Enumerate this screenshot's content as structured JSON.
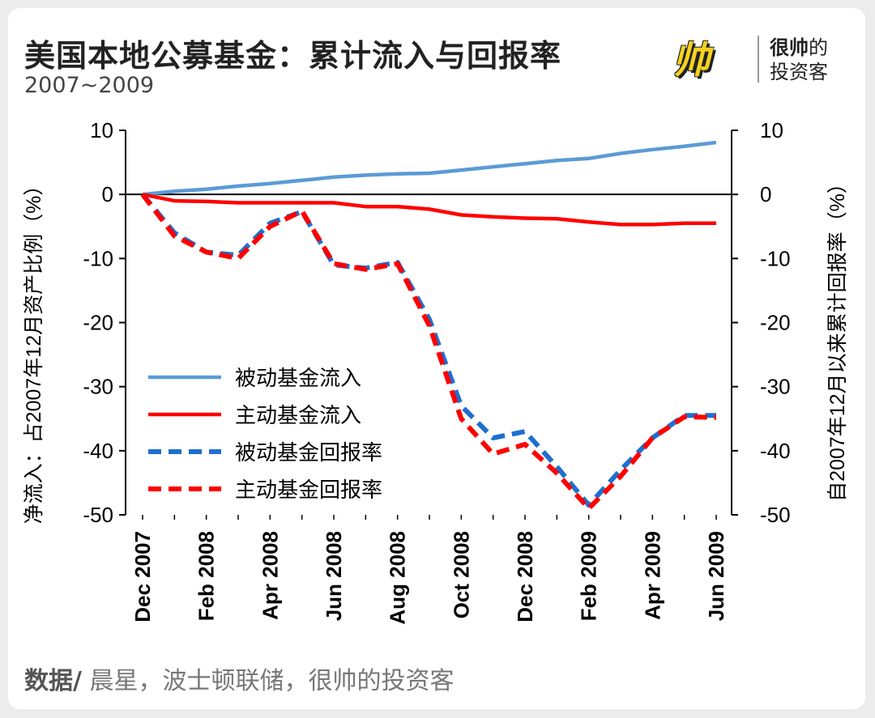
{
  "header": {
    "title": "美国本地公募基金：累计流入与回报率",
    "subtitle": "2007~2009"
  },
  "logo": {
    "mark": "帅",
    "line1a": "很帅",
    "line1b": "的",
    "line2": "投资客"
  },
  "source": {
    "label": "数据/",
    "text": " 晨星，波士顿联储，很帅的投资客"
  },
  "colors": {
    "passive": "#5b9bd5",
    "active": "#ff0000",
    "dash_blue": "#1f6fd0"
  },
  "chart_data": {
    "type": "line",
    "x": [
      "Dec 2007",
      "Jan 2008",
      "Feb 2008",
      "Mar 2008",
      "Apr 2008",
      "May 2008",
      "Jun 2008",
      "Jul 2008",
      "Aug 2008",
      "Sep 2008",
      "Oct 2008",
      "Nov 2008",
      "Dec 2008",
      "Jan 2009",
      "Feb 2009",
      "Mar 2009",
      "Apr 2009",
      "May 2009",
      "Jun 2009"
    ],
    "x_tick_labels": [
      "Dec 2007",
      "Feb 2008",
      "Apr 2008",
      "Jun 2008",
      "Aug 2008",
      "Oct 2008",
      "Dec 2008",
      "Feb 2009",
      "Apr 2009",
      "Jun 2009"
    ],
    "ylabel_left": "净流入：占2007年12月资产比例（%）",
    "ylabel_right": "自2007年12月以来累计回报率（%）",
    "ylim": [
      -50,
      10
    ],
    "yticks": [
      10,
      0,
      -10,
      -20,
      -30,
      -40,
      -50
    ],
    "legend_position": "lower-left",
    "grid": false,
    "series": [
      {
        "name": "被动基金流入",
        "style": "solid",
        "color": "#5b9bd5",
        "values": [
          0,
          0.5,
          0.8,
          1.3,
          1.7,
          2.2,
          2.7,
          3.0,
          3.2,
          3.3,
          3.8,
          4.3,
          4.8,
          5.3,
          5.6,
          6.4,
          7.0,
          7.5,
          8.1
        ]
      },
      {
        "name": "主动基金流入",
        "style": "solid",
        "color": "#ff0000",
        "values": [
          0,
          -1.0,
          -1.1,
          -1.3,
          -1.3,
          -1.3,
          -1.3,
          -1.9,
          -1.9,
          -2.3,
          -3.2,
          -3.5,
          -3.7,
          -3.8,
          -4.3,
          -4.7,
          -4.7,
          -4.5,
          -4.5
        ]
      },
      {
        "name": "被动基金回报率",
        "style": "dashed",
        "color": "#1f6fd0",
        "values": [
          0,
          -6,
          -9,
          -9.5,
          -4.5,
          -2.7,
          -11,
          -11.5,
          -10.6,
          -19.5,
          -33,
          -38,
          -37,
          -42.5,
          -48.5,
          -43,
          -38,
          -34.5,
          -34.5
        ]
      },
      {
        "name": "主动基金回报率",
        "style": "dashed",
        "color": "#ff0000",
        "values": [
          0,
          -6.5,
          -9,
          -10,
          -5,
          -2.6,
          -10.8,
          -11.7,
          -10.8,
          -20.5,
          -35,
          -40.5,
          -39,
          -43.5,
          -49,
          -44,
          -38,
          -34.7,
          -34.8
        ]
      }
    ]
  }
}
